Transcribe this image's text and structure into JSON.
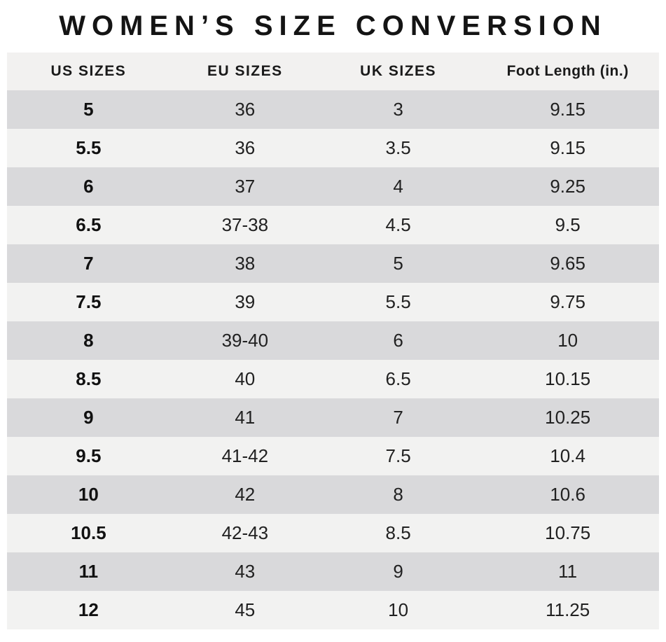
{
  "title": "WOMEN’S SIZE CONVERSION",
  "table": {
    "columns": [
      "US SIZES",
      "EU SIZES",
      "UK SIZES",
      "Foot Length (in.)"
    ],
    "rows": [
      [
        "5",
        "36",
        "3",
        "9.15"
      ],
      [
        "5.5",
        "36",
        "3.5",
        "9.15"
      ],
      [
        "6",
        "37",
        "4",
        "9.25"
      ],
      [
        "6.5",
        "37-38",
        "4.5",
        "9.5"
      ],
      [
        "7",
        "38",
        "5",
        "9.65"
      ],
      [
        "7.5",
        "39",
        "5.5",
        "9.75"
      ],
      [
        "8",
        "39-40",
        "6",
        "10"
      ],
      [
        "8.5",
        "40",
        "6.5",
        "10.15"
      ],
      [
        "9",
        "41",
        "7",
        "10.25"
      ],
      [
        "9.5",
        "41-42",
        "7.5",
        "10.4"
      ],
      [
        "10",
        "42",
        "8",
        "10.6"
      ],
      [
        "10.5",
        "42-43",
        "8.5",
        "10.75"
      ],
      [
        "11",
        "43",
        "9",
        "11"
      ],
      [
        "12",
        "45",
        "10",
        "11.25"
      ]
    ]
  },
  "colors": {
    "page_background": "#ffffff",
    "header_row": "#f2f1f0",
    "row_dark": "#d9d9db",
    "row_light": "#f2f2f1",
    "text": "#1a1a1a"
  },
  "chart_data": {
    "type": "table",
    "title": "WOMEN’S SIZE CONVERSION",
    "columns": [
      "US SIZES",
      "EU SIZES",
      "UK SIZES",
      "Foot Length (in.)"
    ],
    "rows": [
      [
        "5",
        "36",
        "3",
        "9.15"
      ],
      [
        "5.5",
        "36",
        "3.5",
        "9.15"
      ],
      [
        "6",
        "37",
        "4",
        "9.25"
      ],
      [
        "6.5",
        "37-38",
        "4.5",
        "9.5"
      ],
      [
        "7",
        "38",
        "5",
        "9.65"
      ],
      [
        "7.5",
        "39",
        "5.5",
        "9.75"
      ],
      [
        "8",
        "39-40",
        "6",
        "10"
      ],
      [
        "8.5",
        "40",
        "6.5",
        "10.15"
      ],
      [
        "9",
        "41",
        "7",
        "10.25"
      ],
      [
        "9.5",
        "41-42",
        "7.5",
        "10.4"
      ],
      [
        "10",
        "42",
        "8",
        "10.6"
      ],
      [
        "10.5",
        "42-43",
        "8.5",
        "10.75"
      ],
      [
        "11",
        "43",
        "9",
        "11"
      ],
      [
        "12",
        "45",
        "10",
        "11.25"
      ]
    ],
    "layout": {
      "striped": true,
      "first_data_row_shade": "dark",
      "bold_column": 0,
      "alignment": "center"
    }
  }
}
